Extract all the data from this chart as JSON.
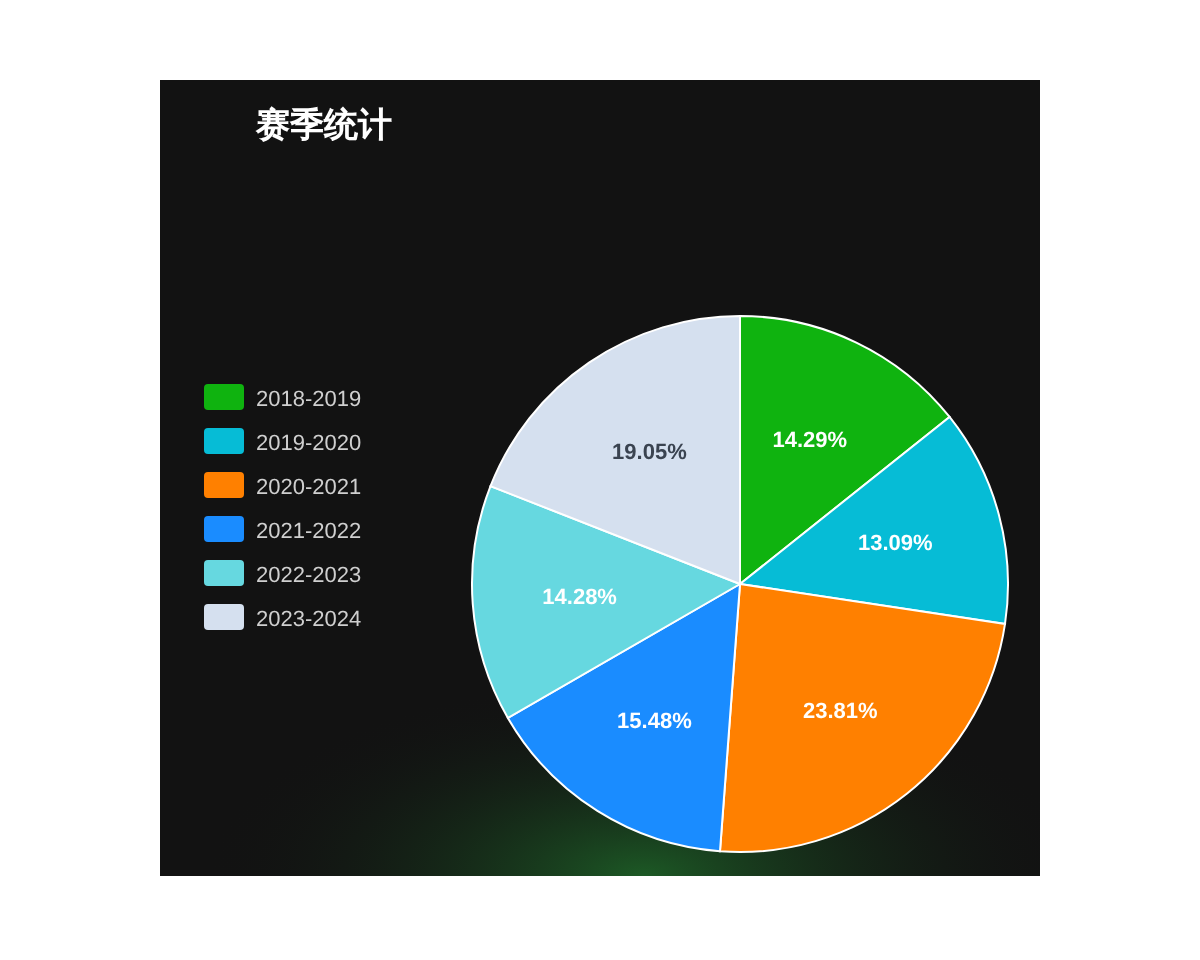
{
  "chart_data": {
    "type": "pie",
    "title": "赛季统计",
    "categories": [
      "2018-2019",
      "2019-2020",
      "2020-2021",
      "2021-2022",
      "2022-2023",
      "2023-2024"
    ],
    "values": [
      14.29,
      13.09,
      23.81,
      15.48,
      14.28,
      19.05
    ],
    "value_labels": [
      "14.29%",
      "13.09%",
      "23.81%",
      "15.48%",
      "14.28%",
      "19.05%"
    ],
    "colors": [
      "#0fb30f",
      "#06bcd6",
      "#ff8000",
      "#1a8cff",
      "#66d8e0",
      "#d5e0ef"
    ],
    "legend": "left"
  }
}
